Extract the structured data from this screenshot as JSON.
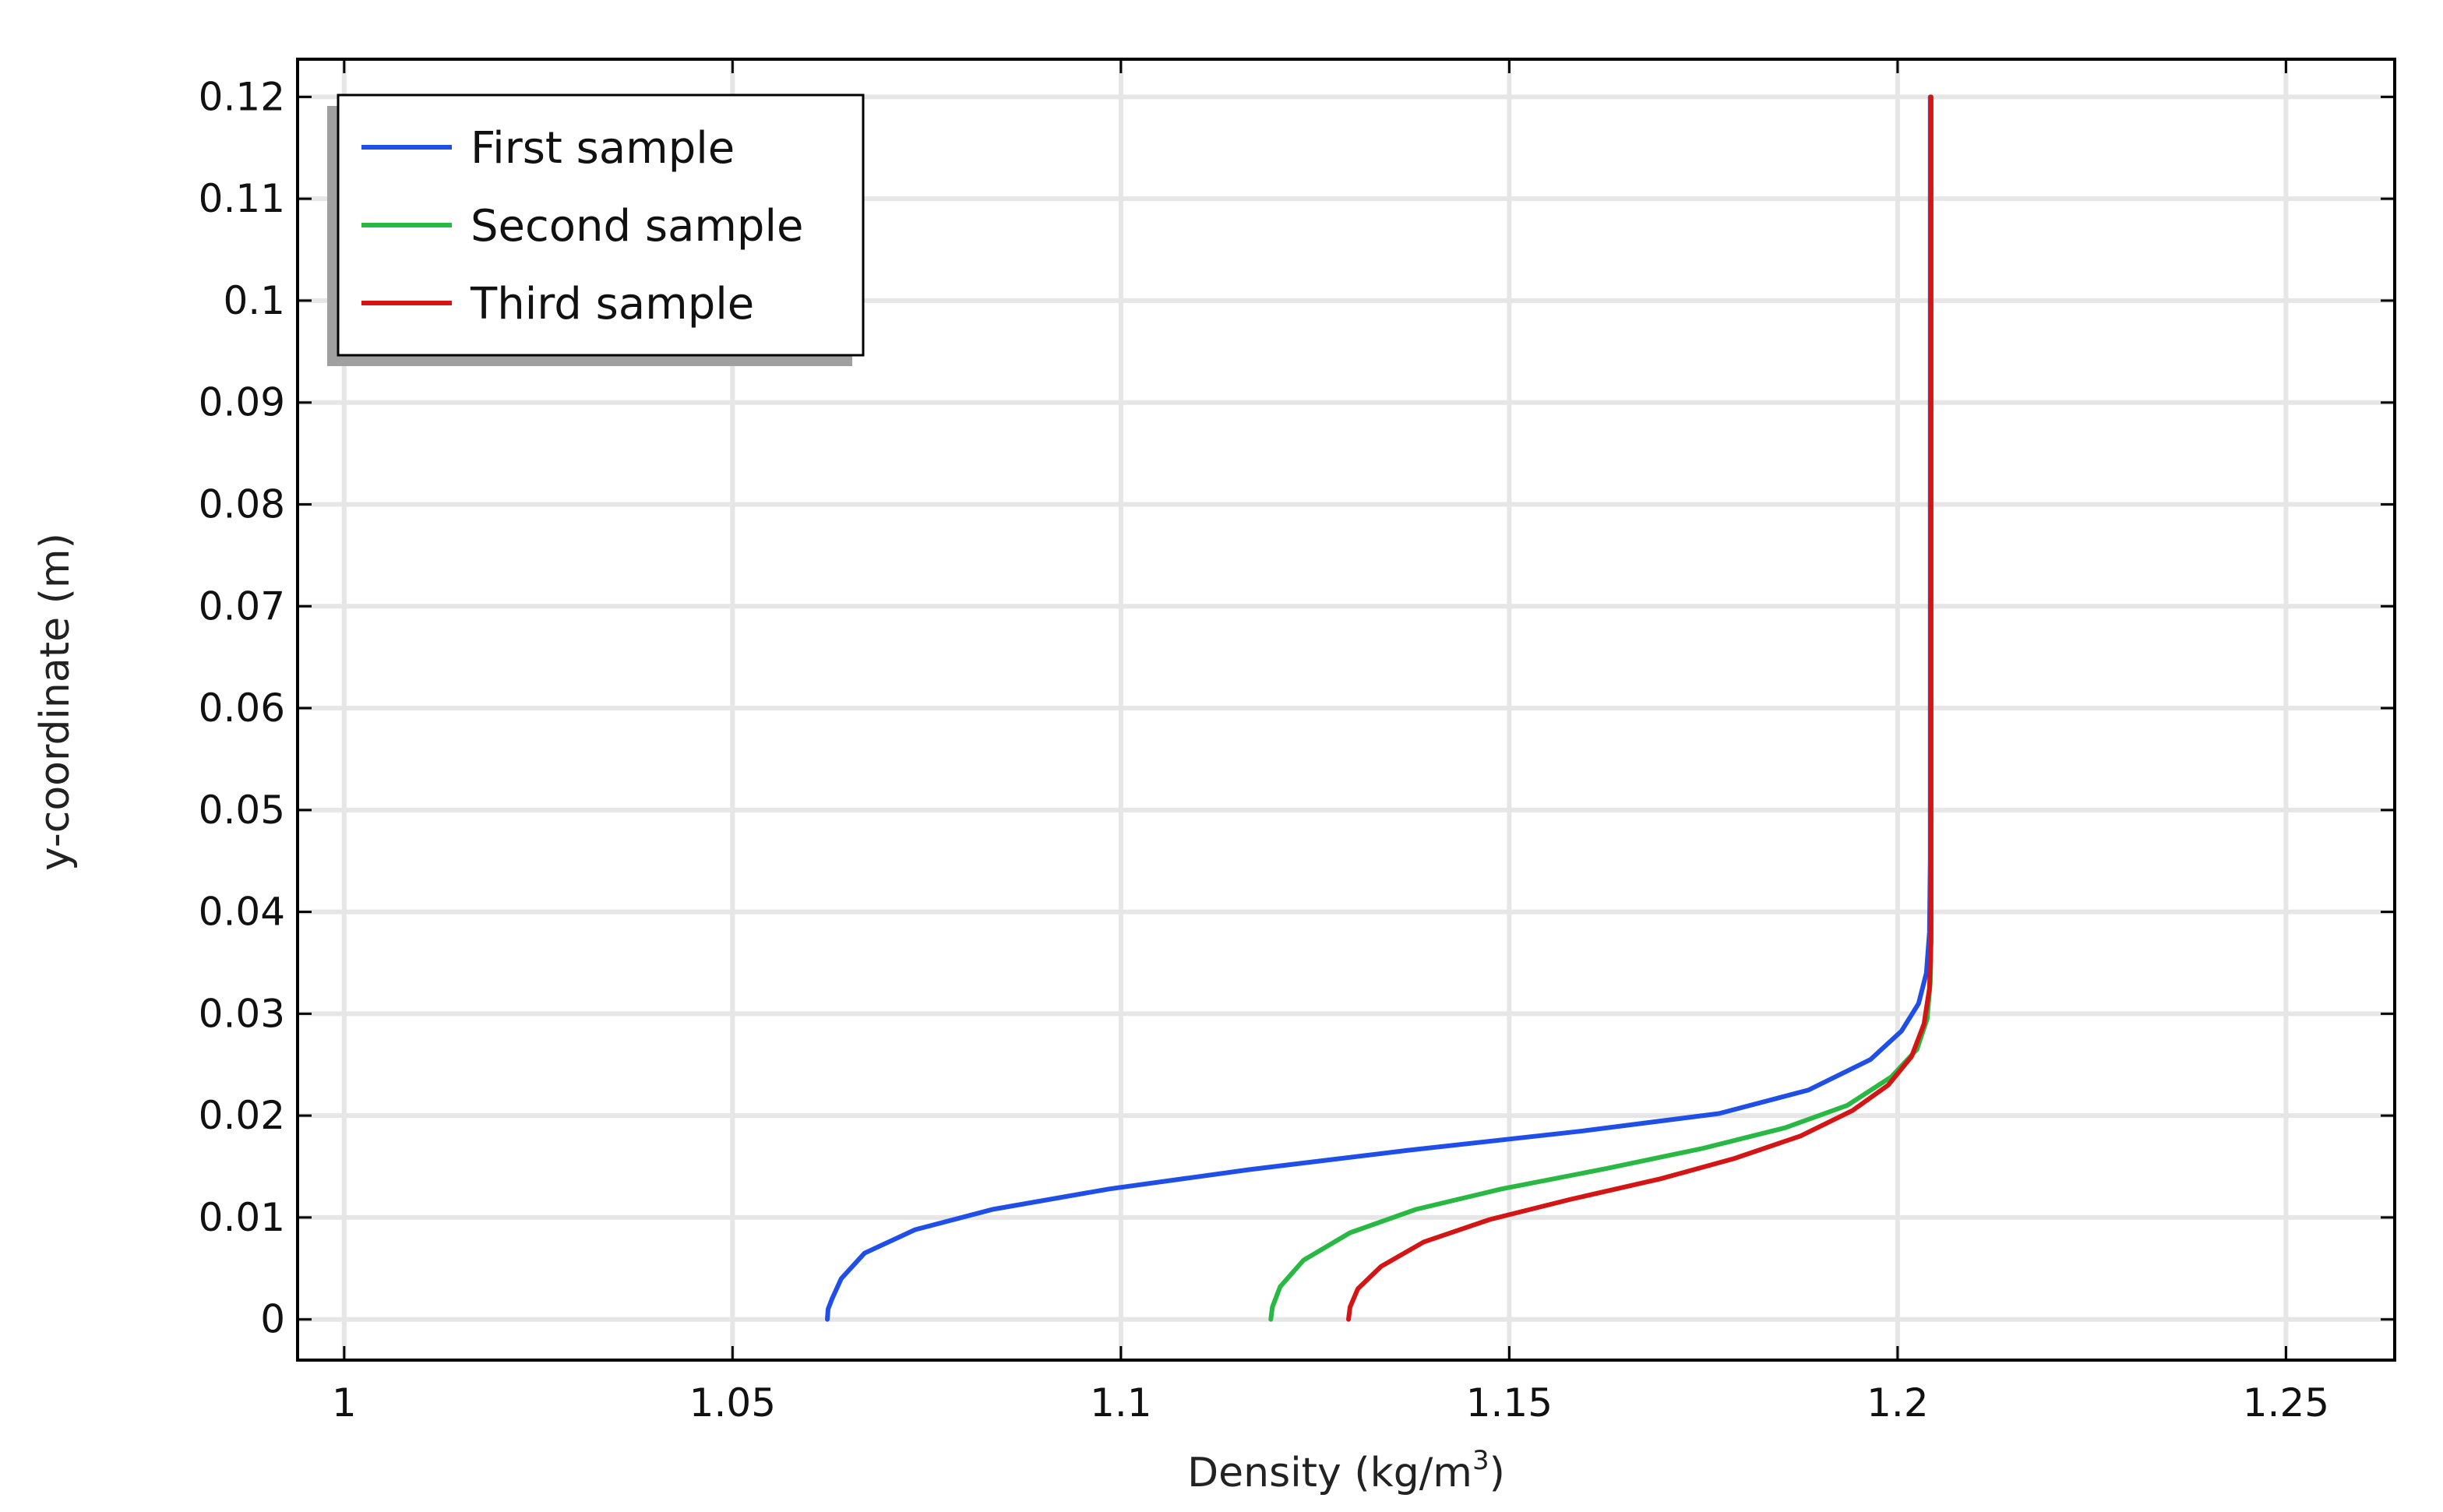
{
  "chart_data": {
    "type": "line",
    "title": "",
    "xlabel": "Density (kg/m",
    "xlabel_superscript": "3",
    "xlabel_suffix": ")",
    "ylabel": "y-coordinate (m)",
    "xlim": [
      0.994,
      1.264
    ],
    "ylim": [
      -0.004,
      0.1237
    ],
    "grid": true,
    "legend_position": "top-left",
    "x_ticks": [
      {
        "value": 1.0,
        "label": "1"
      },
      {
        "value": 1.05,
        "label": "1.05"
      },
      {
        "value": 1.1,
        "label": "1.1"
      },
      {
        "value": 1.15,
        "label": "1.15"
      },
      {
        "value": 1.2,
        "label": "1.2"
      },
      {
        "value": 1.25,
        "label": "1.25"
      }
    ],
    "y_ticks": [
      {
        "value": 0.0,
        "label": "0"
      },
      {
        "value": 0.01,
        "label": "0.01"
      },
      {
        "value": 0.02,
        "label": "0.02"
      },
      {
        "value": 0.03,
        "label": "0.03"
      },
      {
        "value": 0.04,
        "label": "0.04"
      },
      {
        "value": 0.05,
        "label": "0.05"
      },
      {
        "value": 0.06,
        "label": "0.06"
      },
      {
        "value": 0.07,
        "label": "0.07"
      },
      {
        "value": 0.08,
        "label": "0.08"
      },
      {
        "value": 0.09,
        "label": "0.09"
      },
      {
        "value": 0.1,
        "label": "0.1"
      },
      {
        "value": 0.11,
        "label": "0.11"
      },
      {
        "value": 0.12,
        "label": "0.12"
      }
    ],
    "series": [
      {
        "name": "First sample",
        "color": "#1f4fe6",
        "points": [
          [
            1.0622,
            0.0
          ],
          [
            1.0623,
            0.001
          ],
          [
            1.0628,
            0.002
          ],
          [
            1.064,
            0.004
          ],
          [
            1.067,
            0.0065
          ],
          [
            1.0735,
            0.0088
          ],
          [
            1.0835,
            0.0108
          ],
          [
            1.0985,
            0.0128
          ],
          [
            1.1165,
            0.0147
          ],
          [
            1.137,
            0.0166
          ],
          [
            1.1595,
            0.0185
          ],
          [
            1.177,
            0.0202
          ],
          [
            1.1885,
            0.0225
          ],
          [
            1.1965,
            0.0255
          ],
          [
            1.2005,
            0.0283
          ],
          [
            1.2027,
            0.031
          ],
          [
            1.2037,
            0.034
          ],
          [
            1.2041,
            0.038
          ],
          [
            1.2042,
            0.045
          ],
          [
            1.2042,
            0.06
          ],
          [
            1.2042,
            0.08
          ],
          [
            1.2042,
            0.1
          ],
          [
            1.2042,
            0.12
          ]
        ]
      },
      {
        "name": "Second sample",
        "color": "#29b843",
        "points": [
          [
            1.1193,
            0.0
          ],
          [
            1.1195,
            0.0012
          ],
          [
            1.1205,
            0.0032
          ],
          [
            1.1235,
            0.0058
          ],
          [
            1.1295,
            0.0085
          ],
          [
            1.138,
            0.0108
          ],
          [
            1.149,
            0.0128
          ],
          [
            1.1625,
            0.0148
          ],
          [
            1.175,
            0.0168
          ],
          [
            1.1855,
            0.0188
          ],
          [
            1.1935,
            0.021
          ],
          [
            1.1992,
            0.0238
          ],
          [
            1.2025,
            0.0265
          ],
          [
            1.2038,
            0.0295
          ],
          [
            1.2042,
            0.033
          ],
          [
            1.2043,
            0.038
          ],
          [
            1.2043,
            0.05
          ],
          [
            1.2043,
            0.08
          ],
          [
            1.2043,
            0.12
          ]
        ]
      },
      {
        "name": "Third sample",
        "color": "#d41515",
        "points": [
          [
            1.1293,
            0.0
          ],
          [
            1.1295,
            0.0012
          ],
          [
            1.1305,
            0.003
          ],
          [
            1.1335,
            0.0052
          ],
          [
            1.139,
            0.0076
          ],
          [
            1.1475,
            0.0098
          ],
          [
            1.158,
            0.0118
          ],
          [
            1.1695,
            0.0138
          ],
          [
            1.179,
            0.0158
          ],
          [
            1.1875,
            0.018
          ],
          [
            1.1942,
            0.0205
          ],
          [
            1.1988,
            0.023
          ],
          [
            1.2018,
            0.0258
          ],
          [
            1.2034,
            0.029
          ],
          [
            1.2041,
            0.0325
          ],
          [
            1.2043,
            0.037
          ],
          [
            1.2043,
            0.05
          ],
          [
            1.2043,
            0.08
          ],
          [
            1.2043,
            0.12
          ]
        ]
      }
    ]
  }
}
